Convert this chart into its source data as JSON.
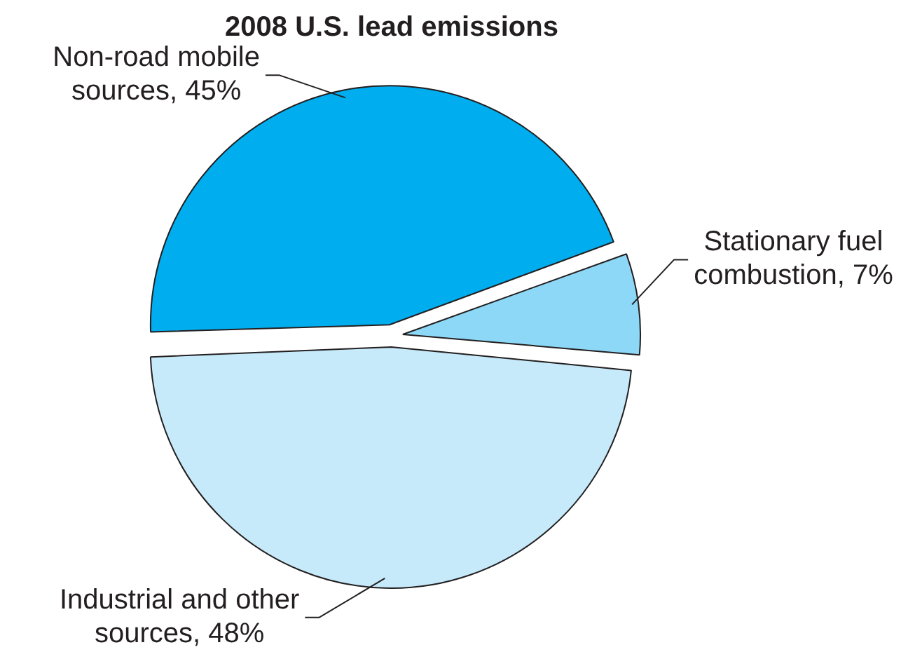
{
  "chart_data": {
    "type": "pie",
    "title": "2008 U.S. lead emissions",
    "categories": [
      "Non-road mobile sources",
      "Stationary fuel combustion",
      "Industrial and other sources"
    ],
    "values": [
      45,
      7,
      48
    ],
    "colors": [
      "#00aeef",
      "#8dd8f7",
      "#c6eafa"
    ],
    "value_labels": [
      "45%",
      "7%",
      "48%"
    ]
  }
}
